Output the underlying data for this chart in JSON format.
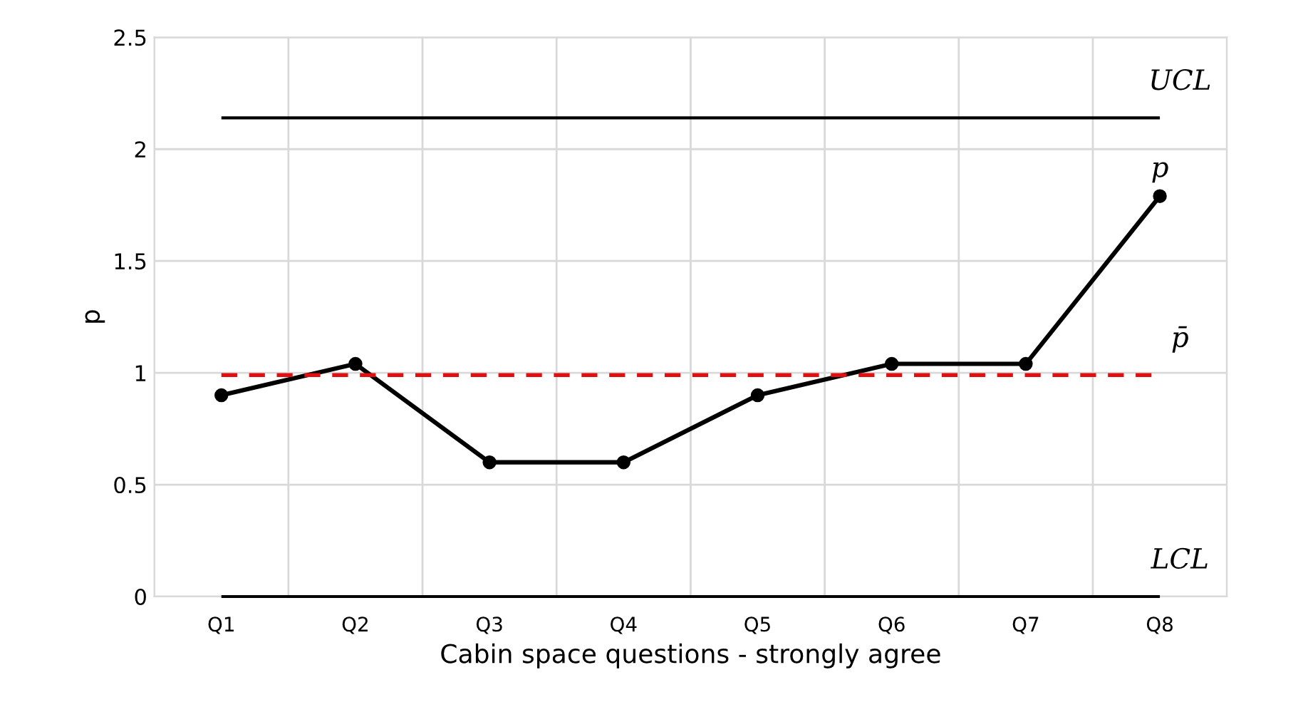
{
  "chart_data": {
    "type": "line",
    "xlabel": "Cabin space questions - strongly agree",
    "ylabel": "p",
    "categories": [
      "Q1",
      "Q2",
      "Q3",
      "Q4",
      "Q5",
      "Q6",
      "Q7",
      "Q8"
    ],
    "series": [
      {
        "name": "p",
        "color": "#000000",
        "values": [
          0.9,
          1.04,
          0.6,
          0.6,
          0.9,
          1.04,
          1.04,
          1.79
        ]
      }
    ],
    "ylim": [
      0,
      2.5
    ],
    "yticks": [
      0,
      0.5,
      1,
      1.5,
      2,
      2.5
    ],
    "ref_lines": [
      {
        "axis": "y",
        "value": 2.14,
        "label": "UCL",
        "color": "#000000",
        "line_style": "solid"
      },
      {
        "axis": "y",
        "value": 0.99,
        "label": "p̄",
        "color": "#e01010",
        "line_style": "dashed"
      },
      {
        "axis": "y",
        "value": 0,
        "label": "LCL",
        "color": "#000000",
        "line_style": "solid"
      }
    ],
    "grid": true,
    "marker": "circle",
    "line_style": "solid",
    "legend": false
  }
}
